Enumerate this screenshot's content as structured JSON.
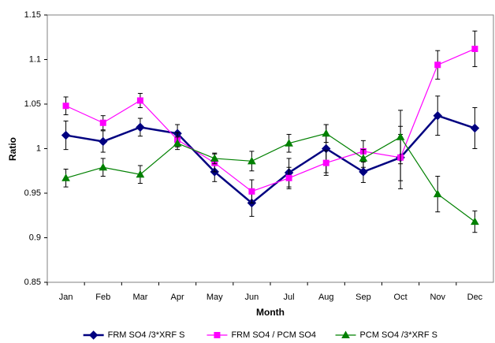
{
  "chart_data": {
    "type": "line",
    "x_label": "Month",
    "y_label": "Ratio",
    "categories": [
      "Jan",
      "Feb",
      "Mar",
      "Apr",
      "May",
      "Jun",
      "Jul",
      "Aug",
      "Sep",
      "Oct",
      "Nov",
      "Dec"
    ],
    "series": [
      {
        "name": "FRM SO4 /3*XRF S",
        "color": "#000080",
        "marker": "diamond",
        "values": [
          1.015,
          1.008,
          1.024,
          1.017,
          0.974,
          0.939,
          0.973,
          1.0,
          0.974,
          0.99,
          1.037,
          1.023
        ],
        "errors": [
          0.016,
          0.012,
          0.01,
          0.01,
          0.011,
          0.015,
          0.016,
          0.027,
          0.012,
          0.026,
          0.022,
          0.023
        ]
      },
      {
        "name": "FRM SO4 / PCM SO4",
        "color": "#ff00ff",
        "marker": "square",
        "values": [
          1.048,
          1.029,
          1.054,
          1.01,
          0.984,
          0.952,
          0.967,
          0.984,
          0.997,
          0.99,
          1.094,
          1.112
        ],
        "errors": [
          0.01,
          0.008,
          0.008,
          0.008,
          0.01,
          0.013,
          0.012,
          0.014,
          0.012,
          0.035,
          0.016,
          0.02
        ]
      },
      {
        "name": "PCM SO4 /3*XRF S",
        "color": "#008000",
        "marker": "triangle",
        "values": [
          0.967,
          0.979,
          0.971,
          1.006,
          0.989,
          0.986,
          1.006,
          1.017,
          0.989,
          1.013,
          0.949,
          0.918
        ],
        "errors": [
          0.01,
          0.01,
          0.01,
          0.007,
          0.006,
          0.011,
          0.01,
          0.01,
          0.01,
          0.03,
          0.02,
          0.012
        ]
      }
    ],
    "ylim": [
      0.85,
      1.15
    ],
    "yticks": [
      0.85,
      0.9,
      0.95,
      1,
      1.05,
      1.1,
      1.15
    ],
    "grid": false,
    "legend": "bottom",
    "error_bar_color": "#000000"
  }
}
